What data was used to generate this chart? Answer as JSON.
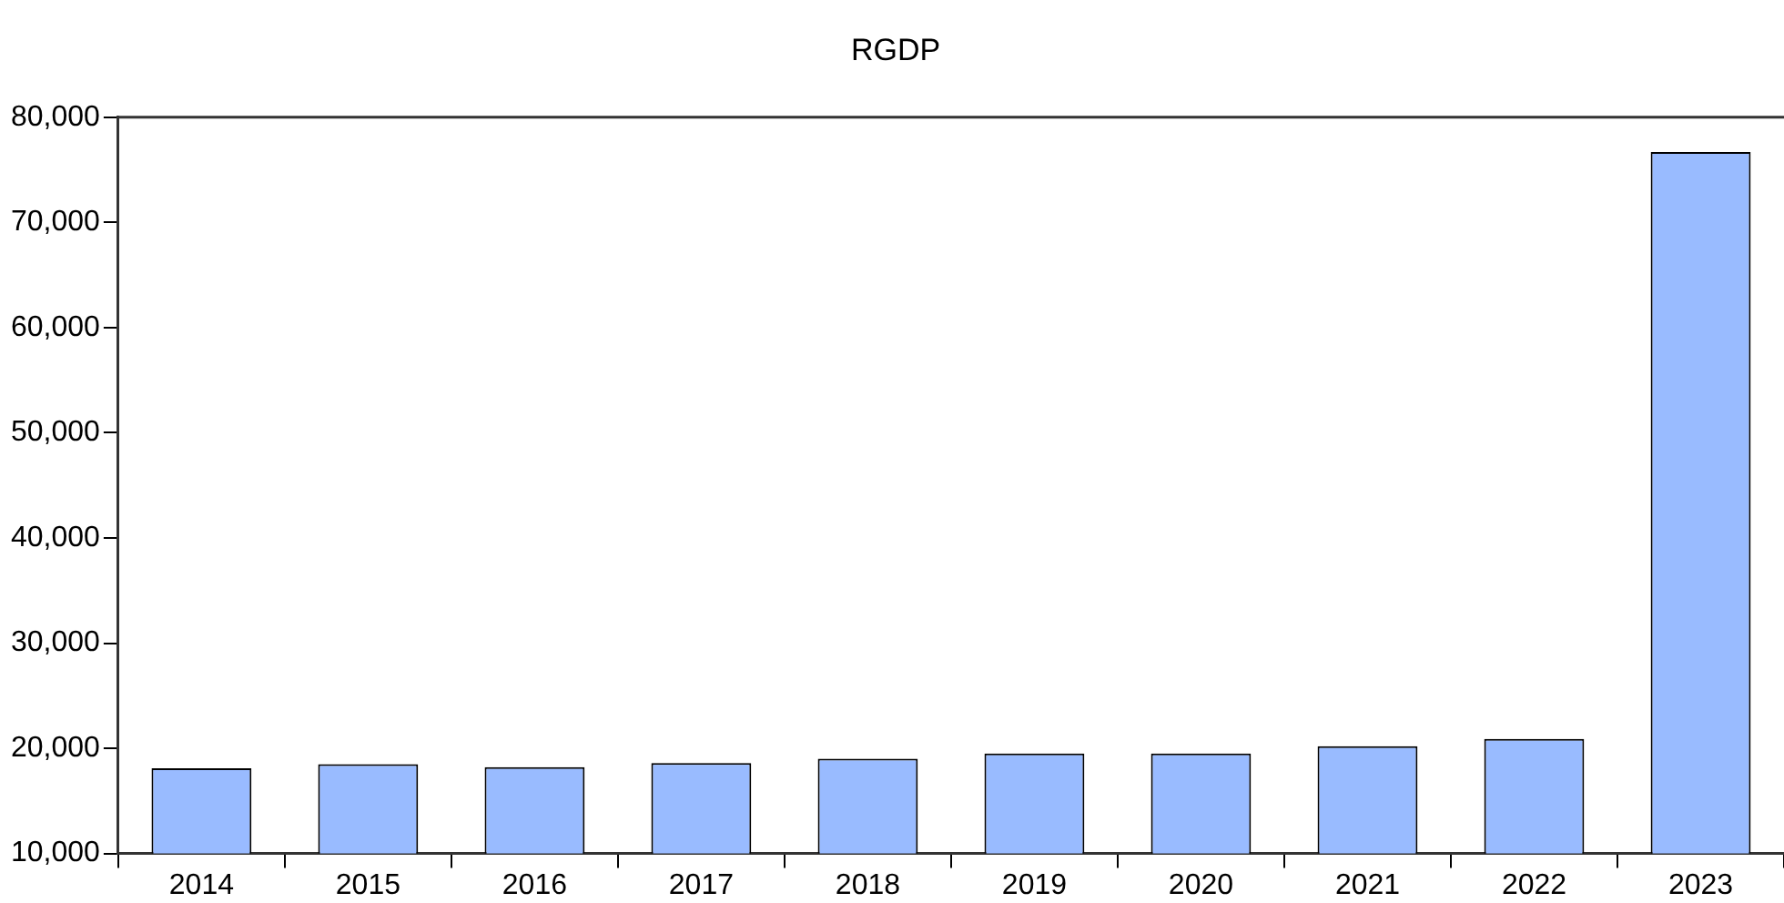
{
  "chart_data": {
    "type": "bar",
    "title": "RGDP",
    "categories": [
      "2014",
      "2015",
      "2016",
      "2017",
      "2018",
      "2019",
      "2020",
      "2021",
      "2022",
      "2023"
    ],
    "values": [
      18100,
      18500,
      18200,
      18600,
      19000,
      19500,
      19500,
      20200,
      20900,
      76700
    ],
    "color": "#99bbff",
    "ylim": [
      10000,
      80000
    ],
    "yticks": [
      {
        "value": 10000,
        "label": "10,000"
      },
      {
        "value": 20000,
        "label": "20,000"
      },
      {
        "value": 30000,
        "label": "30,000"
      },
      {
        "value": 40000,
        "label": "40,000"
      },
      {
        "value": 50000,
        "label": "50,000"
      },
      {
        "value": 60000,
        "label": "60,000"
      },
      {
        "value": 70000,
        "label": "70,000"
      },
      {
        "value": 80000,
        "label": "80,000"
      }
    ],
    "grid": false,
    "legend": false
  }
}
